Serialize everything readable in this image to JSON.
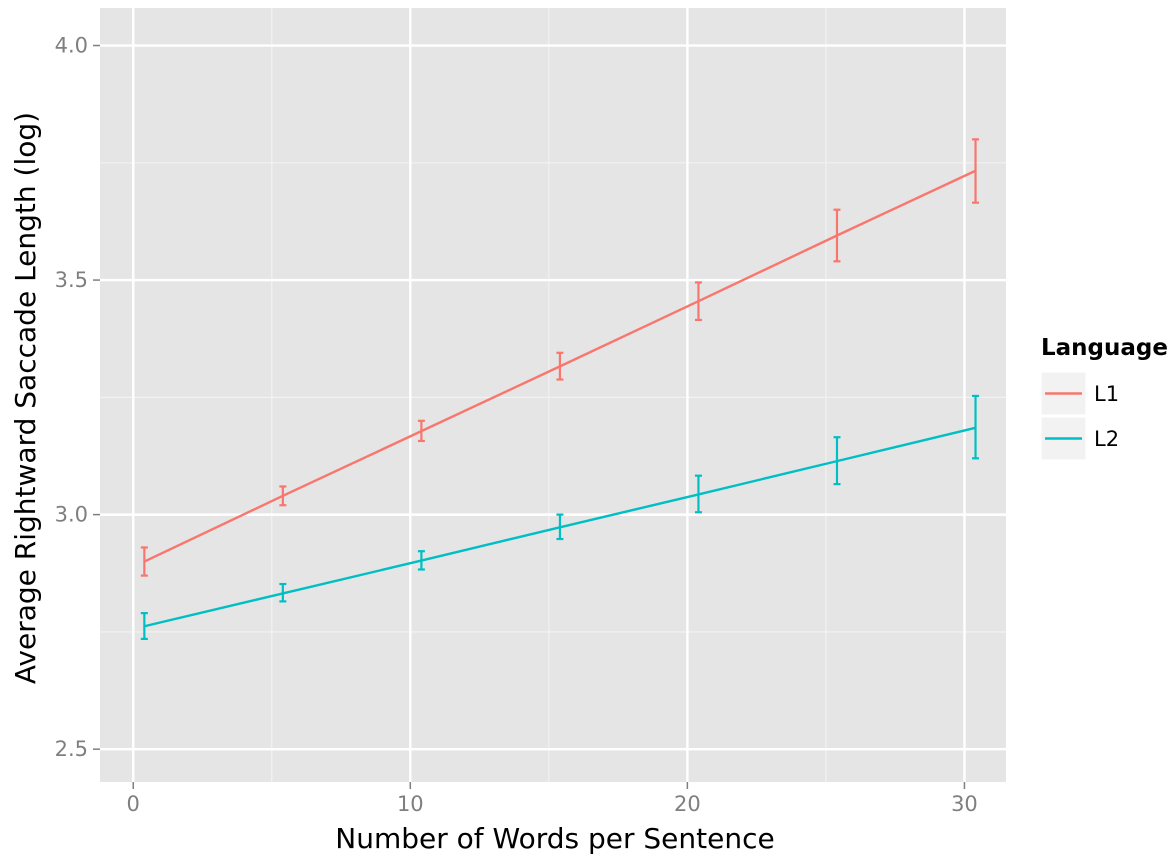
{
  "chart_data": {
    "type": "line",
    "xlabel": "Number of Words per Sentence",
    "ylabel": "Average Rightward Saccade Length (log)",
    "xlim": [
      -1.2,
      31.5
    ],
    "ylim": [
      2.43,
      4.08
    ],
    "x_ticks": [
      0,
      10,
      20,
      30
    ],
    "x_tick_labels": [
      "0",
      "10",
      "20",
      "30"
    ],
    "x_minor_ticks": [
      5,
      15,
      25
    ],
    "y_ticks": [
      2.5,
      3.0,
      3.5,
      4.0
    ],
    "y_tick_labels": [
      "2.5",
      "3.0",
      "3.5",
      "4.0"
    ],
    "y_minor_ticks": [
      2.75,
      3.25,
      3.75
    ],
    "grid": true,
    "legend": {
      "title": "Language",
      "placement": "right"
    },
    "x": [
      0.4,
      5.4,
      10.4,
      15.4,
      20.4,
      25.4,
      30.4
    ],
    "series": [
      {
        "name": "L1",
        "color": "#f8766d",
        "values": [
          2.9,
          3.04,
          3.178,
          3.316,
          3.455,
          3.595,
          3.733
        ],
        "error_low": [
          2.87,
          3.02,
          3.157,
          3.288,
          3.415,
          3.54,
          3.665
        ],
        "error_high": [
          2.93,
          3.06,
          3.2,
          3.345,
          3.495,
          3.65,
          3.8
        ]
      },
      {
        "name": "L2",
        "color": "#00bfc4",
        "values": [
          2.762,
          2.832,
          2.902,
          2.973,
          3.043,
          3.114,
          3.185
        ],
        "error_low": [
          2.735,
          2.815,
          2.883,
          2.948,
          3.005,
          3.065,
          3.12
        ],
        "error_high": [
          2.79,
          2.852,
          2.922,
          3.0,
          3.083,
          3.165,
          3.253
        ]
      }
    ]
  }
}
